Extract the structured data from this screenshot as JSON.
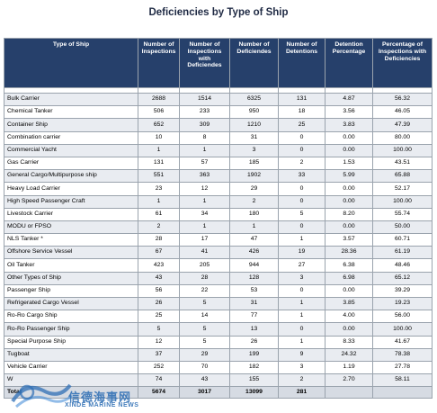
{
  "title": "Deficiencies by Type of Ship",
  "columns": [
    "Type of Ship",
    "Number of Inspections",
    "Number of Inspections with Deficiendes",
    "Number of Deficiendes",
    "Number of Detentions",
    "Detention Percentage",
    "Percentage of Inspections with Deficiencies"
  ],
  "rows": [
    [
      "Bulk Carrier",
      "2688",
      "1514",
      "6325",
      "131",
      "4.87",
      "56.32"
    ],
    [
      "Chemical Tanker",
      "506",
      "233",
      "950",
      "18",
      "3.56",
      "46.05"
    ],
    [
      "Container Ship",
      "652",
      "309",
      "1210",
      "25",
      "3.83",
      "47.39"
    ],
    [
      "Combination carrier",
      "10",
      "8",
      "31",
      "0",
      "0.00",
      "80.00"
    ],
    [
      "Commercial Yacht",
      "1",
      "1",
      "3",
      "0",
      "0.00",
      "100.00"
    ],
    [
      "Gas Carrier",
      "131",
      "57",
      "185",
      "2",
      "1.53",
      "43.51"
    ],
    [
      "General Cargo/Multipurpose ship",
      "551",
      "363",
      "1902",
      "33",
      "5.99",
      "65.88"
    ],
    [
      "Heavy Load Carrier",
      "23",
      "12",
      "29",
      "0",
      "0.00",
      "52.17"
    ],
    [
      "High Speed Passenger Craft",
      "1",
      "1",
      "2",
      "0",
      "0.00",
      "100.00"
    ],
    [
      "Livestock Carrier",
      "61",
      "34",
      "180",
      "5",
      "8.20",
      "55.74"
    ],
    [
      "MODU or FPSO",
      "2",
      "1",
      "1",
      "0",
      "0.00",
      "50.00"
    ],
    [
      "NLS Tanker *",
      "28",
      "17",
      "47",
      "1",
      "3.57",
      "60.71"
    ],
    [
      "Offshore Service Vessel",
      "67",
      "41",
      "426",
      "19",
      "28.36",
      "61.19"
    ],
    [
      "Oil Tanker",
      "423",
      "205",
      "944",
      "27",
      "6.38",
      "48.46"
    ],
    [
      "Other Types of Ship",
      "43",
      "28",
      "128",
      "3",
      "6.98",
      "65.12"
    ],
    [
      "Passenger Ship",
      "56",
      "22",
      "53",
      "0",
      "0.00",
      "39.29"
    ],
    [
      "Refrigerated Cargo Vessel",
      "26",
      "5",
      "31",
      "1",
      "3.85",
      "19.23"
    ],
    [
      "Ro-Ro Cargo Ship",
      "25",
      "14",
      "77",
      "1",
      "4.00",
      "56.00"
    ],
    [
      "Ro-Ro Passenger Ship",
      "5",
      "5",
      "13",
      "0",
      "0.00",
      "100.00"
    ],
    [
      "Special Purpose Ship",
      "12",
      "5",
      "26",
      "1",
      "8.33",
      "41.67"
    ],
    [
      "Tugboat",
      "37",
      "29",
      "199",
      "9",
      "24.32",
      "78.38"
    ],
    [
      "Vehicle Carrier",
      "252",
      "70",
      "182",
      "3",
      "1.19",
      "27.78"
    ],
    [
      "W",
      "74",
      "43",
      "155",
      "2",
      "2.70",
      "58.11"
    ]
  ],
  "total": [
    "Total",
    "5674",
    "3017",
    "13099",
    "281",
    "",
    ""
  ],
  "watermark": {
    "text": "信德海事网",
    "subtext": "XINDE MARINE NEWS",
    "color": "#2f6fb5"
  }
}
